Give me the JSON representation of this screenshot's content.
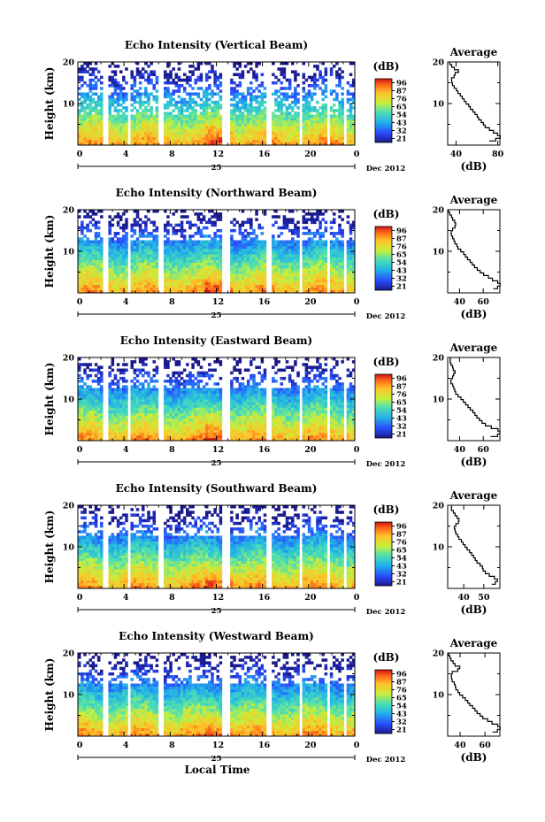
{
  "chart_data": [
    {
      "type": "heatmap",
      "title": "Echo Intensity (Vertical Beam)",
      "ylabel": "Height (km)",
      "xticks": [
        "0",
        "4",
        "8",
        "12",
        "16",
        "20",
        "0"
      ],
      "ylim": [
        0,
        20
      ],
      "yticks": [
        "10",
        "20"
      ],
      "date_label": "25",
      "month_label": "Dec 2012",
      "colorbar": {
        "unit": "(dB)",
        "ticks": [
          "96",
          "87",
          "76",
          "65",
          "54",
          "43",
          "32",
          "21"
        ]
      },
      "avg": {
        "title": "Average",
        "xlabel": "(dB)",
        "xlim": [
          32,
          82
        ],
        "xticks": [
          40,
          80
        ],
        "profile": [
          72,
          78,
          82,
          80,
          76,
          72,
          68,
          66,
          64,
          62,
          60,
          58,
          56,
          54,
          52,
          50,
          48,
          46,
          44,
          42,
          40,
          38,
          37,
          36,
          36,
          38,
          39,
          42,
          38,
          36,
          34
        ]
      }
    },
    {
      "type": "heatmap",
      "title": "Echo Intensity (Northward Beam)",
      "ylabel": "Height (km)",
      "xticks": [
        "0",
        "4",
        "8",
        "12",
        "16",
        "20",
        "0"
      ],
      "ylim": [
        0,
        20
      ],
      "yticks": [
        "10",
        "20"
      ],
      "date_label": "25",
      "month_label": "Dec 2012",
      "colorbar": {
        "unit": "(dB)",
        "ticks": [
          "96",
          "87",
          "76",
          "65",
          "54",
          "43",
          "32",
          "21"
        ]
      },
      "avg": {
        "title": "Average",
        "xlabel": "(dB)",
        "xlim": [
          30,
          74
        ],
        "xticks": [
          40,
          60
        ],
        "profile": [
          68,
          72,
          74,
          72,
          68,
          64,
          60,
          57,
          55,
          53,
          51,
          49,
          47,
          45,
          43,
          41,
          39,
          38,
          36,
          35,
          34,
          33,
          33,
          34,
          36,
          37,
          36,
          34,
          33,
          32,
          31
        ]
      }
    },
    {
      "type": "heatmap",
      "title": "Echo Intensity (Eastward Beam)",
      "ylabel": "Height (km)",
      "xticks": [
        "0",
        "4",
        "8",
        "12",
        "16",
        "20",
        "0"
      ],
      "ylim": [
        0,
        20
      ],
      "yticks": [
        "10",
        "20"
      ],
      "date_label": "25",
      "month_label": "Dec 2012",
      "colorbar": {
        "unit": "(dB)",
        "ticks": [
          "96",
          "87",
          "76",
          "65",
          "54",
          "43",
          "32",
          "21"
        ]
      },
      "avg": {
        "title": "Average",
        "xlabel": "(dB)",
        "xlim": [
          30,
          74
        ],
        "xticks": [
          40,
          60
        ],
        "profile": [
          66,
          72,
          74,
          72,
          67,
          62,
          59,
          57,
          55,
          53,
          51,
          49,
          47,
          45,
          43,
          41,
          39,
          37,
          36,
          35,
          34,
          33,
          33,
          34,
          35,
          36,
          35,
          34,
          33,
          32,
          32
        ]
      }
    },
    {
      "type": "heatmap",
      "title": "Echo Intensity (Southward Beam)",
      "ylabel": "Height (km)",
      "xticks": [
        "0",
        "4",
        "8",
        "12",
        "16",
        "20",
        "0"
      ],
      "ylim": [
        0,
        20
      ],
      "yticks": [
        "10",
        "20"
      ],
      "date_label": "25",
      "month_label": "Dec 2012",
      "colorbar": {
        "unit": "(dB)",
        "ticks": [
          "96",
          "87",
          "76",
          "65",
          "54",
          "43",
          "32",
          "21"
        ]
      },
      "avg": {
        "title": "Average",
        "xlabel": "(dB)",
        "xlim": [
          32,
          58
        ],
        "xticks": [
          40,
          50
        ],
        "profile": [
          54,
          56,
          57,
          55,
          53,
          51,
          50,
          49,
          48,
          47,
          46,
          45,
          44,
          43,
          42,
          41,
          40,
          39,
          38,
          37,
          36,
          36,
          35,
          36,
          37,
          38,
          37,
          36,
          35,
          34,
          34
        ]
      }
    },
    {
      "type": "heatmap",
      "title": "Echo Intensity (Westward Beam)",
      "ylabel": "Height (km)",
      "xlabel": "Local Time",
      "xticks": [
        "0",
        "4",
        "8",
        "12",
        "16",
        "20",
        "0"
      ],
      "ylim": [
        0,
        20
      ],
      "yticks": [
        "10",
        "20"
      ],
      "date_label": "25",
      "month_label": "Dec 2012",
      "colorbar": {
        "unit": "(dB)",
        "ticks": [
          "96",
          "87",
          "76",
          "65",
          "54",
          "43",
          "32",
          "21"
        ]
      },
      "avg": {
        "title": "Average",
        "xlabel": "(dB)",
        "xlim": [
          30,
          72
        ],
        "xticks": [
          40,
          60
        ],
        "profile": [
          66,
          70,
          72,
          70,
          66,
          62,
          58,
          56,
          54,
          52,
          50,
          48,
          46,
          44,
          42,
          40,
          38,
          37,
          36,
          35,
          34,
          33,
          33,
          34,
          38,
          40,
          36,
          34,
          33,
          32,
          31
        ]
      }
    }
  ]
}
